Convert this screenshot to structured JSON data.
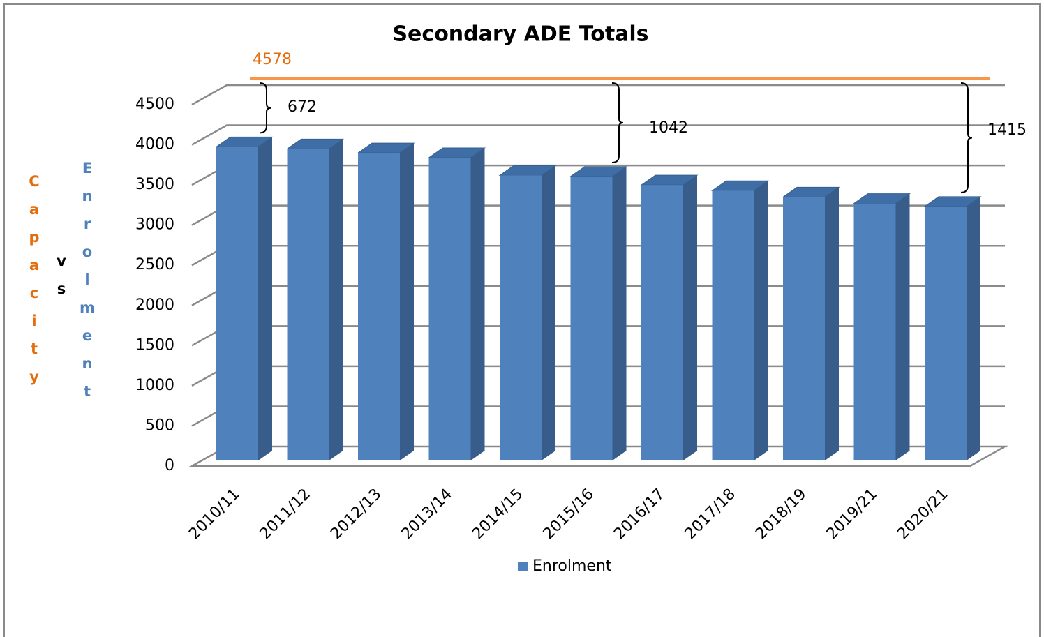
{
  "chart_data": {
    "type": "bar3d",
    "title": "Secondary ADE Totals",
    "ylabel": {
      "capacity": "Capacity",
      "vs": "vs",
      "enrolment": "Enrolment"
    },
    "categories": [
      "2010/11",
      "2011/12",
      "2012/13",
      "2013/14",
      "2014/15",
      "2015/16",
      "2016/17",
      "2017/18",
      "2018/19",
      "2019/21",
      "2020/21"
    ],
    "series": [
      {
        "name": "Enrolment",
        "color": "#4f81bd",
        "values": [
          3906,
          3880,
          3830,
          3770,
          3550,
          3536,
          3430,
          3360,
          3280,
          3200,
          3163
        ]
      }
    ],
    "capacity": {
      "value": 4578,
      "color": "#f79646"
    },
    "annotations": [
      672,
      1042,
      1415
    ],
    "ylim": [
      0,
      4500
    ],
    "yticks": [
      0,
      500,
      1000,
      1500,
      2000,
      2500,
      3000,
      3500,
      4000,
      4500
    ],
    "grid": true
  }
}
